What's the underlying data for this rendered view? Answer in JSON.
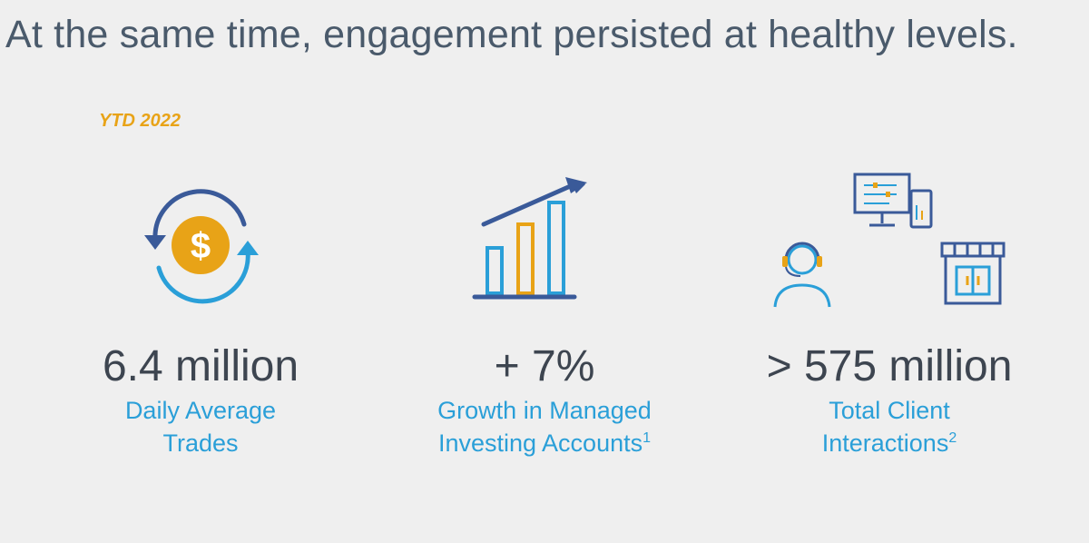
{
  "title": "At the same time, engagement persisted at healthy levels.",
  "period": "YTD 2022",
  "colors": {
    "accent_orange": "#e8a317",
    "accent_blue": "#2a9fd8",
    "dark_blue": "#3a5a99",
    "text_dark": "#3d4550"
  },
  "stats": [
    {
      "icon": "dollar-cycle-icon",
      "value": "6.4 million",
      "line1": "Daily Average",
      "line2": "Trades",
      "footnote": ""
    },
    {
      "icon": "growth-bar-chart-icon",
      "value": "+ 7%",
      "line1": "Growth in Managed",
      "line2": "Investing Accounts",
      "footnote": "1"
    },
    {
      "icon": "client-interactions-icon",
      "value": "> 575 million",
      "line1": "Total Client",
      "line2": "Interactions",
      "footnote": "2"
    }
  ]
}
